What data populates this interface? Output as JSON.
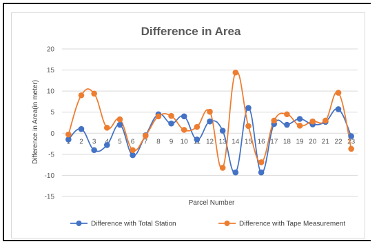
{
  "chart_data": {
    "type": "line",
    "title": "Difference in Area",
    "xlabel": "Parcel Number",
    "ylabel": "Difference in Area(in meter)",
    "ylim": [
      -15,
      20
    ],
    "ystep": 5,
    "categories": [
      "1",
      "2",
      "3",
      "4",
      "5",
      "6",
      "7",
      "8",
      "9",
      "10",
      "11",
      "12",
      "13",
      "14",
      "15",
      "16",
      "17",
      "18",
      "19",
      "20",
      "21",
      "22",
      "23"
    ],
    "grid": true,
    "smooth": true,
    "legend_position": "bottom",
    "series": [
      {
        "name": "Difference with Total Station",
        "color": "#4472c4",
        "values": [
          -1.5,
          1.0,
          -4.0,
          -2.8,
          2.0,
          -5.2,
          -0.5,
          4.5,
          2.3,
          4.0,
          -1.5,
          2.8,
          0.6,
          -9.3,
          6.0,
          -9.3,
          2.2,
          2.0,
          3.4,
          2.1,
          2.7,
          5.7,
          -0.7
        ]
      },
      {
        "name": "Difference with Tape Measurement",
        "color": "#ed7d31",
        "values": [
          -0.3,
          9.0,
          9.4,
          1.3,
          3.3,
          -4.0,
          -0.6,
          4.0,
          4.1,
          0.8,
          1.5,
          5.1,
          -8.2,
          14.4,
          1.7,
          -6.9,
          3.0,
          4.5,
          1.8,
          2.8,
          3.0,
          9.6,
          -3.7
        ]
      }
    ]
  }
}
